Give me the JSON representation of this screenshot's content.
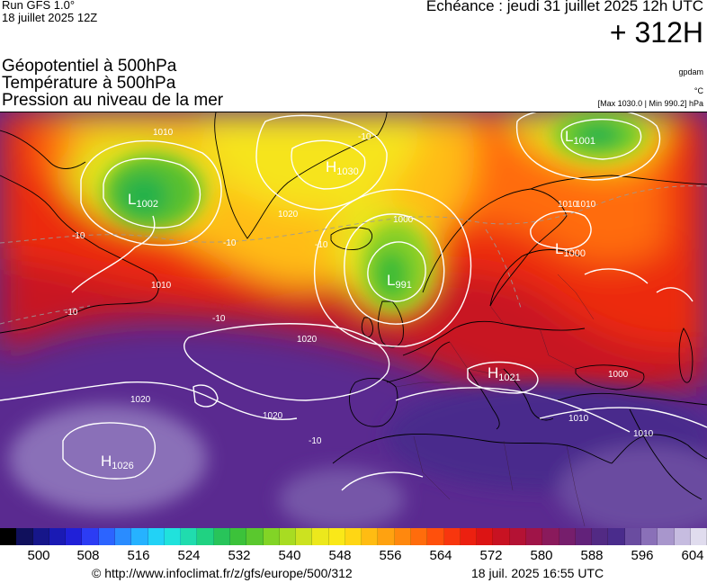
{
  "header": {
    "run_line1": "Run GFS 1.0°",
    "run_line2": "18 juillet 2025 12Z",
    "echeance": "Echéance : jeudi 31 juillet 2025 12h UTC",
    "horizon": "+ 312H"
  },
  "parameters": {
    "geopotential": "Géopotentiel à 500hPa",
    "temperature": "Température à 500hPa",
    "pressure": "Pression au niveau de la mer",
    "unit_geopotential": "gpdam",
    "unit_temperature": "°C",
    "pressure_range": "[Max 1030.0 | Min 990.2] hPa"
  },
  "map": {
    "pressure_centers": [
      {
        "type": "L",
        "value": "1002"
      },
      {
        "type": "H",
        "value": "1030"
      },
      {
        "type": "L",
        "value": "1001"
      },
      {
        "type": "L",
        "value": "1000"
      },
      {
        "type": "L",
        "value": "991"
      },
      {
        "type": "H",
        "value": "1021"
      },
      {
        "type": "H",
        "value": "1026"
      }
    ],
    "isobar_labels": [
      "1010",
      "1000",
      "1020",
      "1020",
      "1020",
      "1010",
      "1010",
      "1000",
      "1010",
      "1010",
      "1010",
      "1020"
    ],
    "temperature_labels": [
      "-10",
      "-10",
      "-10",
      "-10",
      "-10",
      "-10",
      "-10"
    ]
  },
  "scale": {
    "labels": [
      "500",
      "508",
      "516",
      "524",
      "532",
      "540",
      "548",
      "556",
      "564",
      "572",
      "580",
      "588",
      "596",
      "604"
    ],
    "colors": [
      "#000000",
      "#10105c",
      "#16168a",
      "#1a1ab4",
      "#2020d8",
      "#2c3cf4",
      "#2c64ff",
      "#2a8cff",
      "#26b2ff",
      "#22d2f6",
      "#20e2dc",
      "#20dcae",
      "#20d282",
      "#28c45a",
      "#3cc23a",
      "#5ac82e",
      "#82d426",
      "#a8dc22",
      "#cce220",
      "#ece81c",
      "#fae818",
      "#ffd614",
      "#ffbc12",
      "#ffa210",
      "#ff880e",
      "#ff6c0c",
      "#ff500c",
      "#f8360e",
      "#ec2010",
      "#dc1414",
      "#c81222",
      "#b41234",
      "#a01448",
      "#8a1a5c",
      "#761e6c",
      "#62227a",
      "#522a84",
      "#4a2c8c",
      "#6a4ca0",
      "#8a70b8",
      "#a896cc",
      "#c6bce0",
      "#e0dcee"
    ]
  },
  "footer": {
    "url": "© http://www.infoclimat.fr/z/gfs/europe/500/312",
    "date": "18 juil. 2025 16:55 UTC"
  }
}
